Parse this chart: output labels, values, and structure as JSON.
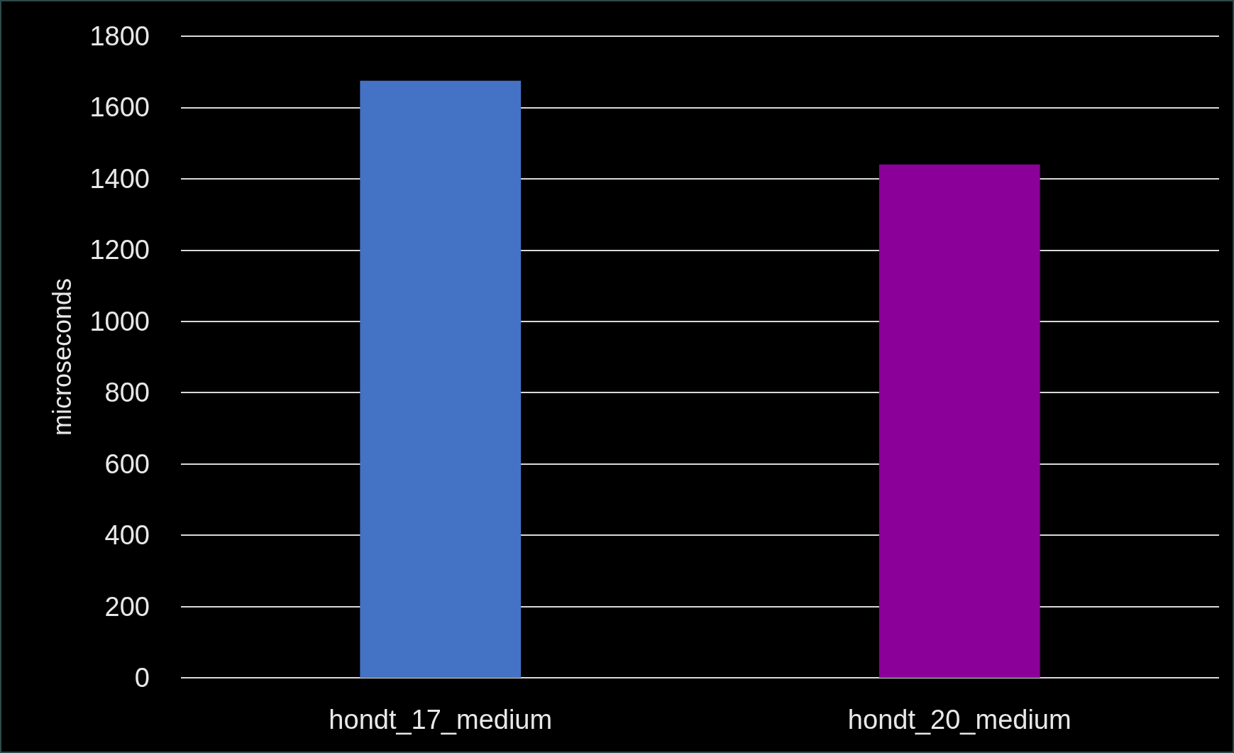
{
  "chart_data": {
    "type": "bar",
    "ylabel": "microseconds",
    "categories": [
      "hondt_17_medium",
      "hondt_20_medium"
    ],
    "values": [
      1675,
      1440
    ],
    "colors": [
      "#4472c4",
      "#8b0099"
    ],
    "ylim": [
      0,
      1800
    ],
    "yticks": [
      0,
      200,
      400,
      600,
      800,
      1000,
      1200,
      1400,
      1600,
      1800
    ],
    "grid": "y"
  }
}
